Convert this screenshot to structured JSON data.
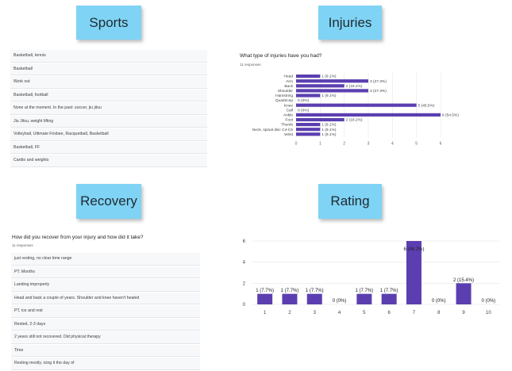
{
  "stickies": {
    "sports": "Sports",
    "injuries": "Injuries",
    "recovery": "Recovery",
    "rating": "Rating"
  },
  "sports": {
    "rows": [
      "Basketball, tennis",
      "Basketball",
      "Work out",
      "Basketball, football",
      "None at the moment. In the past: soccer, jiu jitsu",
      "Jiu Jitsu, weight lifting",
      "Volleyball, Ultimate Frisbee, Racquetball, Basketball",
      "Basketball, FF",
      "Cardio and weights"
    ]
  },
  "injuries": {
    "question": "What type of injuries have you had?",
    "responses": "11 responses"
  },
  "recovery": {
    "question": "How did you recover from your injury and how did it take?",
    "responses": "11 responses",
    "rows": [
      "just resting, no clear time range",
      "PT. Months",
      "Landing improperly",
      "Head and back a couple of years. Shoulder and knee haven't healed",
      "PT, ice and rest",
      "Rested, 2-3 days",
      "2 years still not recovered. Did physical therapy",
      "Time",
      "Resting mostly, icing it the day of"
    ]
  },
  "chart_data": [
    {
      "type": "bar",
      "orientation": "horizontal",
      "color": "#5b3fb0",
      "categories": [
        "Head",
        "Arm",
        "Back",
        "Shoulder",
        "Hamstring",
        "Quadricep",
        "Knee",
        "Calf",
        "Ankle",
        "Foot",
        "Thumb",
        "Neck, spinal disc C4-C5",
        "Wrist"
      ],
      "values": [
        1,
        3,
        2,
        3,
        1,
        0,
        5,
        0,
        6,
        2,
        1,
        1,
        1
      ],
      "labels": [
        "1 (9.1%)",
        "3 (27.3%)",
        "2 (18.2%)",
        "3 (27.3%)",
        "1 (9.1%)",
        "0 (0%)",
        "5 (45.5%)",
        "0 (0%)",
        "6 (54.5%)",
        "2 (18.2%)",
        "1 (9.1%)",
        "1 (9.1%)",
        "1 (9.1%)"
      ],
      "xticks": [
        "0",
        "1",
        "2",
        "3",
        "4",
        "5",
        "6"
      ],
      "xlim": [
        0,
        6
      ]
    },
    {
      "type": "bar",
      "orientation": "vertical",
      "color": "#5b3fb0",
      "categories": [
        "1",
        "2",
        "3",
        "4",
        "5",
        "6",
        "7",
        "8",
        "9",
        "10"
      ],
      "values": [
        1,
        1,
        1,
        0,
        1,
        1,
        6,
        0,
        2,
        0
      ],
      "labels": [
        "1 (7.7%)",
        "1 (7.7%)",
        "1 (7.7%)",
        "0 (0%)",
        "1 (7.7%)",
        "1 (7.7%)",
        "6 (46.2%)",
        "0 (0%)",
        "2 (15.4%)",
        "0 (0%)"
      ],
      "yticks": [
        "0",
        "2",
        "4",
        "6"
      ],
      "ylim": [
        0,
        6
      ]
    }
  ]
}
